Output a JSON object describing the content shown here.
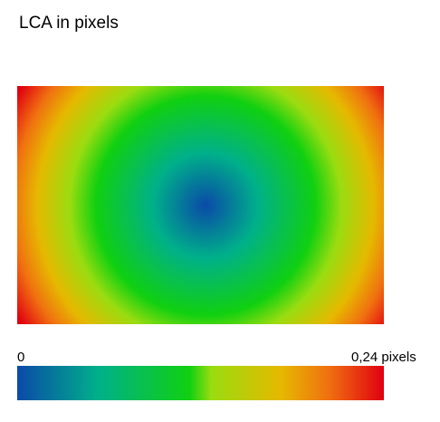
{
  "chart_data": {
    "type": "heatmap",
    "title": "LCA in pixels",
    "pattern": "radial",
    "value_min": 0,
    "value_max": 0.24,
    "center_value": 0,
    "corner_value": 0.24,
    "colormap": [
      "#0a4aa8",
      "#00b08a",
      "#10d010",
      "#9adc10",
      "#e6b800",
      "#f07010",
      "#e00010"
    ],
    "scale_labels": {
      "min": "0",
      "max": "0,24 pixels"
    }
  }
}
